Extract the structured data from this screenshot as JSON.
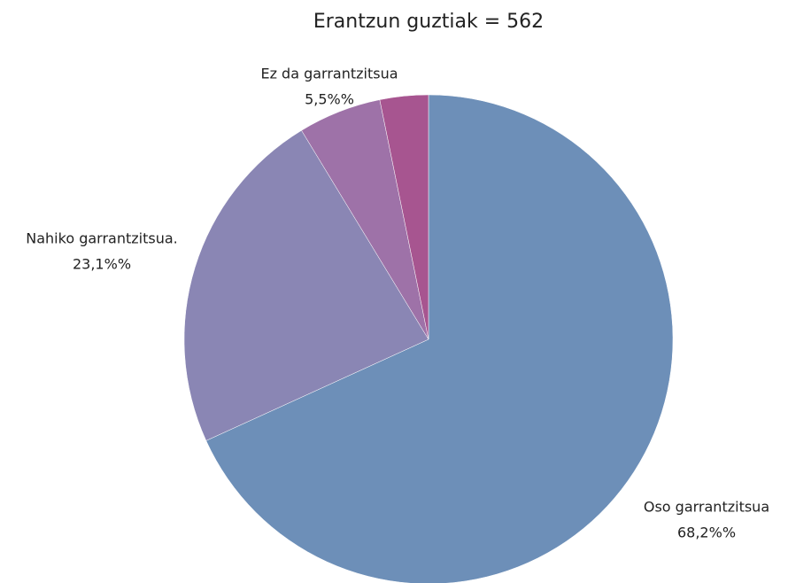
{
  "chart_data": {
    "type": "pie",
    "title": "Erantzun guztiak = 562",
    "categories": [
      "Oso garrantzitsua",
      "Nahiko garrantzitsua.",
      "Ez da garrantzitsua",
      null
    ],
    "values": [
      68.2,
      23.1,
      5.5,
      3.2
    ],
    "value_labels": [
      "68,2%%",
      "23,1%%",
      "5,5%%",
      null
    ],
    "colors": [
      "#6d8fb8",
      "#8a86b4",
      "#9e72a8",
      "#a75590"
    ]
  }
}
